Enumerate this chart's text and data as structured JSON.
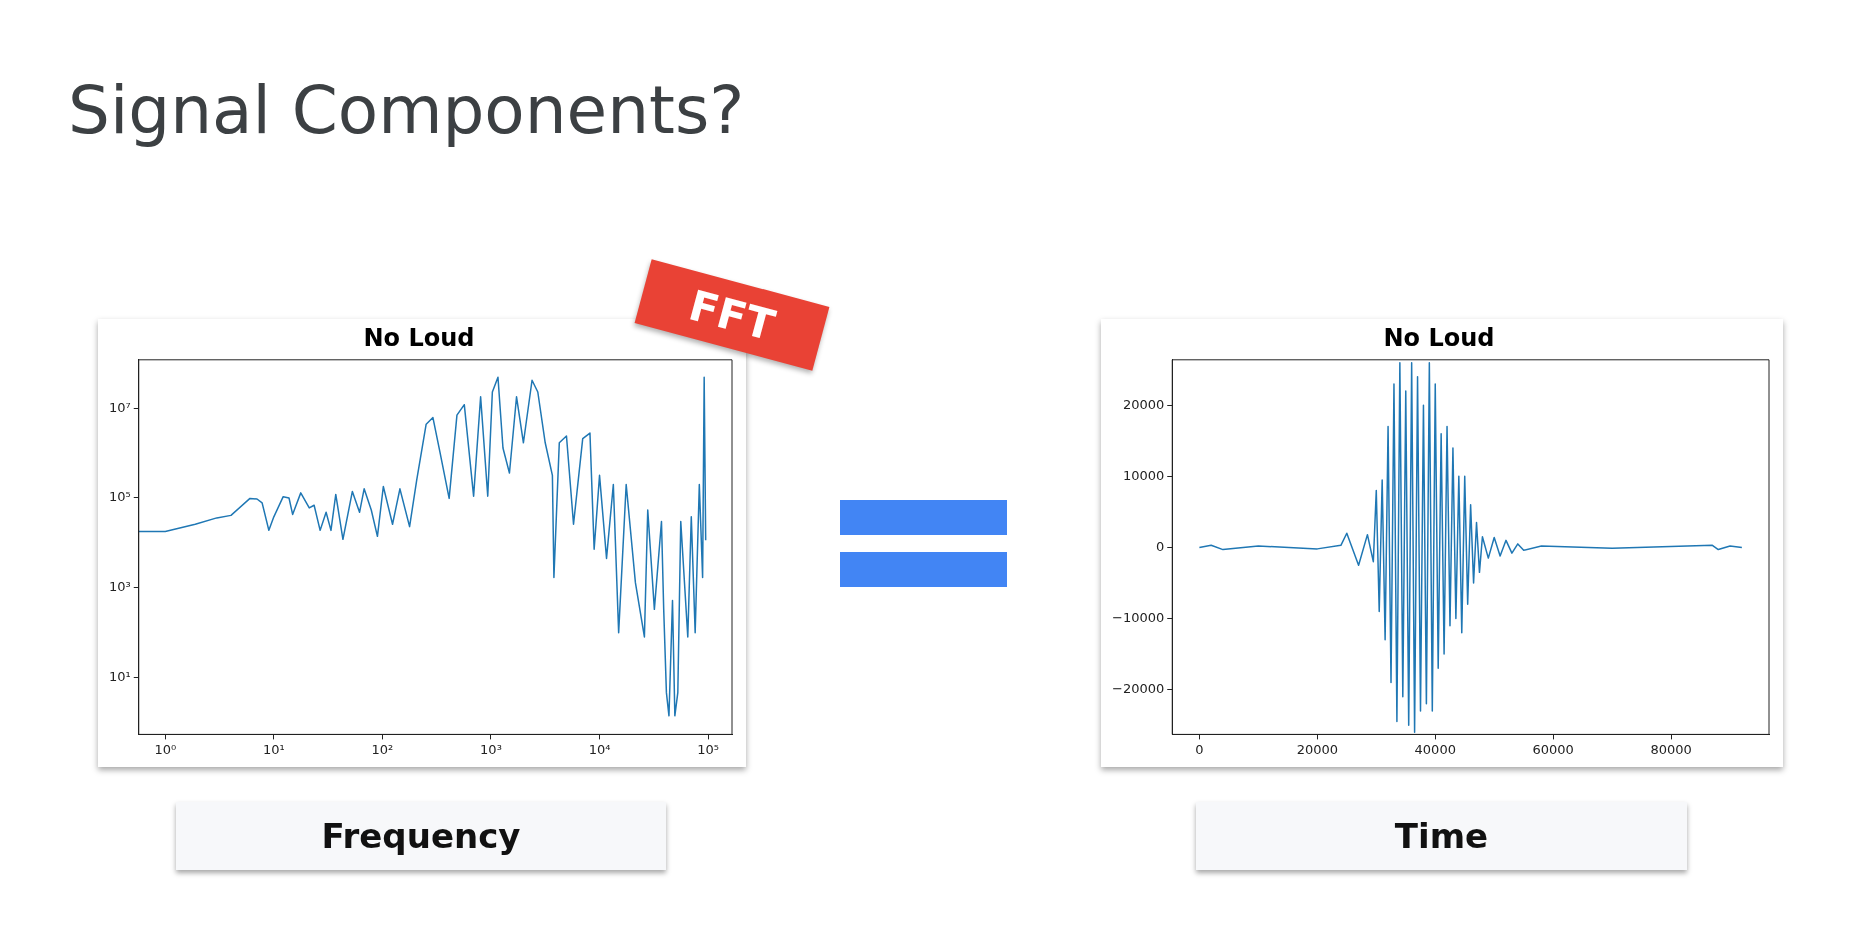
{
  "chart_data": [
    {
      "type": "line",
      "title": "No Loud",
      "xlabel": "Frequency",
      "log": "xy",
      "color": "#1f77b4",
      "annotations": [
        "Signal Components?",
        "FFT"
      ],
      "xlim": [
        0.57,
        166000
      ],
      "ylim": [
        0.54,
        120000000
      ],
      "xticks": [
        {
          "value": 1,
          "label": "10⁰"
        },
        {
          "value": 10,
          "label": "10¹"
        },
        {
          "value": 100,
          "label": "10²"
        },
        {
          "value": 1000,
          "label": "10³"
        },
        {
          "value": 10000,
          "label": "10⁴"
        },
        {
          "value": 100000,
          "label": "10⁵"
        }
      ],
      "yticks": [
        {
          "value": 10,
          "label": "10¹"
        },
        {
          "value": 1000,
          "label": "10³"
        },
        {
          "value": 100000,
          "label": "10⁵"
        },
        {
          "value": 10000000,
          "label": "10⁷"
        }
      ],
      "x": [
        0.57,
        1,
        1.89,
        2.98,
        4.03,
        6.03,
        7,
        7.8,
        9,
        10,
        12.2,
        13.8,
        14.9,
        17.7,
        21.2,
        23.5,
        26.7,
        30.3,
        33.6,
        37.2,
        43.3,
        52.9,
        61.6,
        67.9,
        79,
        90,
        102,
        124,
        145,
        178,
        207,
        253,
        292,
        339,
        412,
        486,
        568,
        692,
        803,
        934,
        1030,
        1160,
        1290,
        1480,
        1720,
        1990,
        2390,
        2700,
        3160,
        3680,
        3800,
        4260,
        4960,
        5760,
        7000,
        8160,
        8920,
        10000,
        11600,
        13400,
        15000,
        17600,
        21400,
        25900,
        27800,
        32000,
        37200,
        39000,
        41300,
        43600,
        47000,
        49400,
        52600,
        56000,
        65000,
        70000,
        76000,
        83000,
        89000,
        92000,
        95000
      ],
      "values": [
        18000,
        18000,
        26000,
        36000,
        41000,
        98000,
        95000,
        78000,
        19000,
        38000,
        107000,
        100000,
        43000,
        130000,
        60000,
        69000,
        19000,
        48000,
        19000,
        120000,
        12000,
        140000,
        48000,
        160000,
        54000,
        14000,
        180000,
        26000,
        160000,
        23000,
        250000,
        4400000,
        6200000,
        1050000,
        98000,
        7000000,
        12000000,
        110000,
        18000000,
        110000,
        23000000,
        49000000,
        1300000,
        360000,
        18000000,
        1700000,
        42000000,
        23000000,
        1700000,
        320000,
        1700,
        1700000,
        2400000,
        26000,
        2100000,
        2800000,
        7200,
        320000,
        4500,
        200000,
        100,
        200000,
        1300,
        80,
        54000,
        330,
        30000,
        330,
        4.6,
        1.4,
        520,
        1.4,
        4.6,
        30000,
        80,
        38000,
        100,
        200000,
        1700,
        49000000,
        11500
      ]
    },
    {
      "type": "line",
      "title": "No Loud",
      "xlabel": "Time",
      "color": "#1f77b4",
      "xlim": [
        -4600,
        96600
      ],
      "ylim": [
        -26300,
        26400
      ],
      "xticks": [
        0,
        20000,
        40000,
        60000,
        80000
      ],
      "yticks": [
        {
          "value": -20000,
          "label": "−20000"
        },
        {
          "value": -10000,
          "label": "−10000"
        },
        0,
        10000,
        20000
      ],
      "x": [
        0,
        2000,
        4000,
        10000,
        20000,
        24000,
        25000,
        27000,
        28500,
        29500,
        30000,
        30500,
        31000,
        31500,
        32000,
        32500,
        33000,
        33500,
        34000,
        34500,
        35000,
        35500,
        36000,
        36500,
        37000,
        37500,
        38000,
        38500,
        39000,
        39500,
        40000,
        40500,
        41000,
        41500,
        42000,
        42500,
        43000,
        43500,
        44000,
        44500,
        45000,
        45500,
        46000,
        46500,
        47000,
        47500,
        48000,
        49000,
        50000,
        51000,
        52000,
        53000,
        54000,
        55000,
        58000,
        70000,
        87000,
        88000,
        90000,
        92000
      ],
      "values": [
        0,
        300,
        -300,
        200,
        -200,
        300,
        2000,
        -2500,
        1800,
        -2000,
        8000,
        -9000,
        9500,
        -13000,
        17000,
        -19000,
        23000,
        -24500,
        26000,
        -21000,
        22000,
        -25000,
        26000,
        -26000,
        24000,
        -23000,
        20000,
        -22000,
        26000,
        -23000,
        23000,
        -17000,
        16000,
        -15000,
        17000,
        -11000,
        14000,
        -10000,
        10000,
        -12000,
        10000,
        -8000,
        6000,
        -5000,
        3500,
        -3500,
        1500,
        -1500,
        1400,
        -1200,
        1000,
        -800,
        500,
        -400,
        200,
        -100,
        300,
        -300,
        200,
        0
      ]
    }
  ]
}
